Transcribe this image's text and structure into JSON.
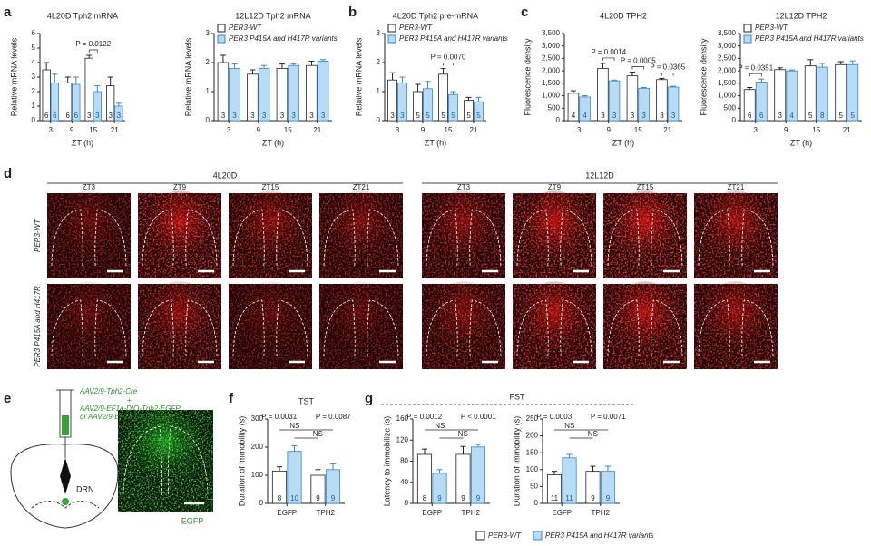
{
  "panel_labels": [
    "a",
    "b",
    "c",
    "d",
    "e",
    "f",
    "g"
  ],
  "fst_title": "FST",
  "legend": {
    "items": [
      {
        "name": "PER3-WT",
        "color": "#ffffff"
      },
      {
        "name": "PER3 P415A and H417R variants",
        "color": "#b8dcf5"
      }
    ]
  },
  "panel_d": {
    "groups": [
      "4L20D",
      "12L12D"
    ],
    "columns": [
      "ZT3",
      "ZT9",
      "ZT15",
      "ZT21"
    ],
    "rows": [
      "PER3-WT",
      "PER3 P415A and H417R"
    ]
  },
  "panel_e": {
    "construct_1": "AAV2/9-Tph2-Cre",
    "plus": "+",
    "construct_2": "AAV2/9-EF1a-DIO-Tph2-EGFP",
    "construct_3": "or AAV2/9-EF1a-DIO-EGFP",
    "region": "DRN",
    "channel": "EGFP"
  },
  "chart_data": [
    {
      "type": "bar",
      "title": "4L20D Tph2 mRNA",
      "y_label": "Relative mRNA levels",
      "x_label": "ZT (h)",
      "categories": [
        3,
        9,
        15,
        21
      ],
      "ylim": [
        0,
        6
      ],
      "yticks": [
        0,
        1,
        2,
        3,
        4,
        5,
        6
      ],
      "series": [
        {
          "color": "#ffffff",
          "values": [
            3.5,
            2.6,
            4.3,
            2.4
          ],
          "errors": [
            0.5,
            0.4,
            0.2,
            0.6
          ],
          "n": [
            6,
            6,
            3,
            3
          ]
        },
        {
          "color": "#b8dcf5",
          "values": [
            2.6,
            2.5,
            2.0,
            1.0
          ],
          "errors": [
            0.6,
            0.5,
            0.4,
            0.2
          ],
          "n": [
            6,
            6,
            3,
            3
          ]
        }
      ],
      "annotations": [
        "P = 0.0122"
      ]
    },
    {
      "type": "bar",
      "title": "12L12D Tph2 mRNA",
      "y_label": "Relative mRNA levels",
      "x_label": "ZT (h)",
      "categories": [
        3,
        9,
        15,
        21
      ],
      "ylim": [
        0,
        3
      ],
      "yticks": [
        0,
        1,
        2,
        3
      ],
      "legend": "upper left",
      "series": [
        {
          "name": "PER3-WT",
          "color": "#ffffff",
          "values": [
            2.0,
            1.6,
            1.8,
            1.9
          ],
          "errors": [
            0.25,
            0.15,
            0.15,
            0.15
          ],
          "n": [
            3,
            3,
            3,
            3
          ]
        },
        {
          "name": "PER3 P415A and H417R variants",
          "color": "#b8dcf5",
          "values": [
            1.8,
            1.8,
            1.9,
            2.05
          ],
          "errors": [
            0.15,
            0.1,
            0.05,
            0.05
          ],
          "n": [
            3,
            3,
            3,
            3
          ]
        }
      ]
    },
    {
      "type": "bar",
      "title": "4L20D Tph2 pre-mRNA",
      "y_label": "Relative mRNA levels",
      "x_label": "ZT (h)",
      "categories": [
        3,
        9,
        15,
        21
      ],
      "ylim": [
        0,
        3
      ],
      "yticks": [
        0,
        1,
        2,
        3
      ],
      "legend": "upper left",
      "series": [
        {
          "name": "PER3-WT",
          "color": "#ffffff",
          "values": [
            1.4,
            1.0,
            1.6,
            0.7
          ],
          "errors": [
            0.25,
            0.25,
            0.2,
            0.1
          ],
          "n": [
            3,
            5,
            5,
            5
          ]
        },
        {
          "name": "PER3 P415A and H417R variants",
          "color": "#b8dcf5",
          "values": [
            1.3,
            1.1,
            0.9,
            0.65
          ],
          "errors": [
            0.2,
            0.25,
            0.1,
            0.15
          ],
          "n": [
            3,
            5,
            5,
            5
          ]
        }
      ],
      "annotations": [
        "P = 0.0070"
      ]
    },
    {
      "type": "bar",
      "title": "4L20D TPH2",
      "y_label": "Fluorescence density",
      "x_label": "ZT (h)",
      "categories": [
        3,
        9,
        15,
        21
      ],
      "ylim": [
        0,
        3500
      ],
      "yticks": [
        0,
        500,
        {
          "value": 1000,
          "label": "1,000"
        },
        {
          "value": 1500,
          "label": "1,500"
        },
        {
          "value": 2000,
          "label": "2,000"
        },
        {
          "value": 2500,
          "label": "2,500"
        },
        {
          "value": 3000,
          "label": "3,000"
        },
        {
          "value": 3500,
          "label": "3,500"
        }
      ],
      "series": [
        {
          "color": "#ffffff",
          "values": [
            1100,
            2100,
            1800,
            1650
          ],
          "errors": [
            100,
            200,
            150,
            50
          ],
          "n": [
            4,
            3,
            3,
            3
          ]
        },
        {
          "color": "#b8dcf5",
          "values": [
            950,
            1600,
            1300,
            1350
          ],
          "errors": [
            50,
            30,
            30,
            30
          ],
          "n": [
            4,
            3,
            3,
            3
          ]
        }
      ],
      "annotations": [
        "P = 0.0014",
        "P = 0.0005",
        "P = 0.0365"
      ]
    },
    {
      "type": "bar",
      "title": "12L12D TPH2",
      "y_label": "Fluorescence density",
      "x_label": "ZT (h)",
      "categories": [
        3,
        9,
        15,
        21
      ],
      "ylim": [
        0,
        3500
      ],
      "legend": "upper left",
      "yticks": [
        0,
        500,
        {
          "value": 1000,
          "label": "1,000"
        },
        {
          "value": 1500,
          "label": "1,500"
        },
        {
          "value": 2000,
          "label": "2,000"
        },
        {
          "value": 2500,
          "label": "2,500"
        },
        {
          "value": 3000,
          "label": "3,000"
        },
        {
          "value": 3500,
          "label": "3,500"
        }
      ],
      "series": [
        {
          "name": "PER3-WT",
          "color": "#ffffff",
          "values": [
            1250,
            2050,
            2200,
            2250
          ],
          "errors": [
            80,
            70,
            250,
            120
          ],
          "n": [
            6,
            3,
            5,
            5
          ]
        },
        {
          "name": "PER3 P415A and H417R variants",
          "color": "#b8dcf5",
          "values": [
            1550,
            2000,
            2150,
            2250
          ],
          "errors": [
            120,
            40,
            150,
            150
          ],
          "n": [
            6,
            4,
            8,
            5
          ]
        }
      ],
      "annotations": [
        "P = 0.0351"
      ]
    },
    {
      "type": "bar",
      "title": "TST",
      "y_label": "Duration of immobility (s)",
      "categories": [
        "EGFP",
        "TPH2"
      ],
      "ylim": [
        0,
        300
      ],
      "yticks": [
        0,
        100,
        200,
        300
      ],
      "series": [
        {
          "color": "#ffffff",
          "values": [
            115,
            100
          ],
          "errors": [
            15,
            20
          ],
          "n": [
            8,
            9
          ]
        },
        {
          "color": "#b8dcf5",
          "values": [
            185,
            120
          ],
          "errors": [
            20,
            20
          ],
          "n": [
            10,
            9
          ]
        }
      ],
      "annotations": [
        "P = 0.0031",
        "P = 0.0087",
        "NS",
        "NS"
      ]
    },
    {
      "type": "bar",
      "y_label": "Latency to immobilize (s)",
      "categories": [
        "EGFP",
        "TPH2"
      ],
      "ylim": [
        0,
        160
      ],
      "yticks": [
        0,
        40,
        80,
        120,
        160
      ],
      "series": [
        {
          "color": "#ffffff",
          "values": [
            93,
            93
          ],
          "errors": [
            10,
            15
          ],
          "n": [
            8,
            9
          ]
        },
        {
          "color": "#b8dcf5",
          "values": [
            57,
            107
          ],
          "errors": [
            7,
            5
          ],
          "n": [
            9,
            9
          ]
        }
      ],
      "annotations": [
        "P = 0.0012",
        "P < 0.0001",
        "NS",
        "NS"
      ]
    },
    {
      "type": "bar",
      "y_label": "Duration of immobility (s)",
      "categories": [
        "EGFP",
        "TPH2"
      ],
      "ylim": [
        0,
        250
      ],
      "yticks": [
        0,
        50,
        100,
        150,
        200,
        250
      ],
      "series": [
        {
          "color": "#ffffff",
          "values": [
            85,
            95
          ],
          "errors": [
            10,
            15
          ],
          "n": [
            11,
            9
          ]
        },
        {
          "color": "#b8dcf5",
          "values": [
            135,
            95
          ],
          "errors": [
            10,
            15
          ],
          "n": [
            11,
            9
          ]
        }
      ],
      "annotations": [
        "P = 0.0003",
        "P = 0.0071",
        "NS",
        "NS"
      ]
    }
  ]
}
